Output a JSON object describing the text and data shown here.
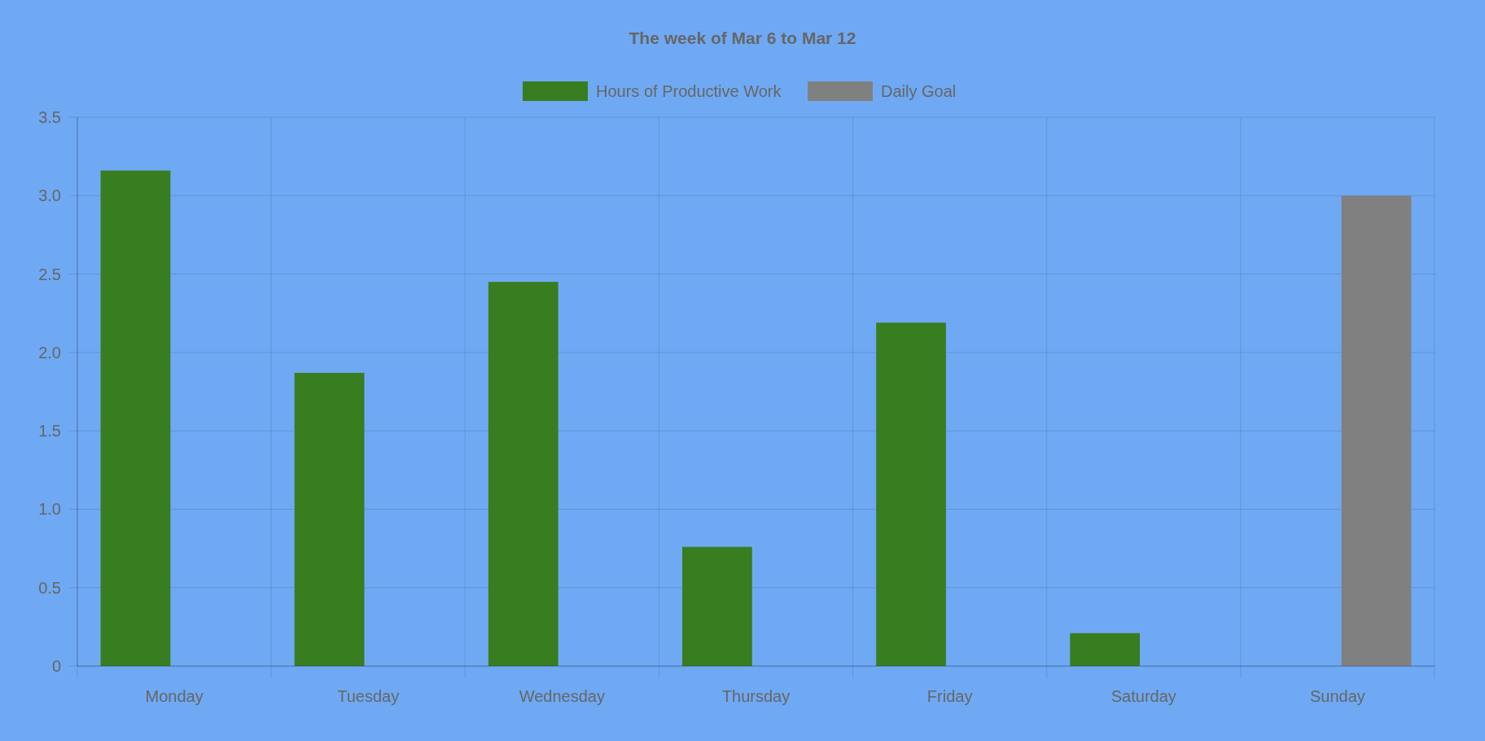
{
  "chart_data": {
    "type": "bar",
    "title": "The week of Mar 6 to Mar 12",
    "categories": [
      "Monday",
      "Tuesday",
      "Wednesday",
      "Thursday",
      "Friday",
      "Saturday",
      "Sunday"
    ],
    "series": [
      {
        "name": "Hours of Productive Work",
        "color": "#387d20",
        "values": [
          3.16,
          1.87,
          2.45,
          0.76,
          2.19,
          0.21,
          null
        ]
      },
      {
        "name": "Daily Goal",
        "color": "#808080",
        "values": [
          null,
          null,
          null,
          null,
          null,
          null,
          3.0
        ]
      }
    ],
    "ylim": [
      0,
      3.5
    ],
    "yticks": [
      {
        "value": 0,
        "label": "0"
      },
      {
        "value": 0.5,
        "label": "0.5"
      },
      {
        "value": 1,
        "label": "1.0"
      },
      {
        "value": 1.5,
        "label": "1.5"
      },
      {
        "value": 2,
        "label": "2.0"
      },
      {
        "value": 2.5,
        "label": "2.5"
      },
      {
        "value": 3,
        "label": "3.0"
      },
      {
        "value": 3.5,
        "label": "3.5"
      }
    ],
    "grid": true,
    "legend": "top"
  }
}
